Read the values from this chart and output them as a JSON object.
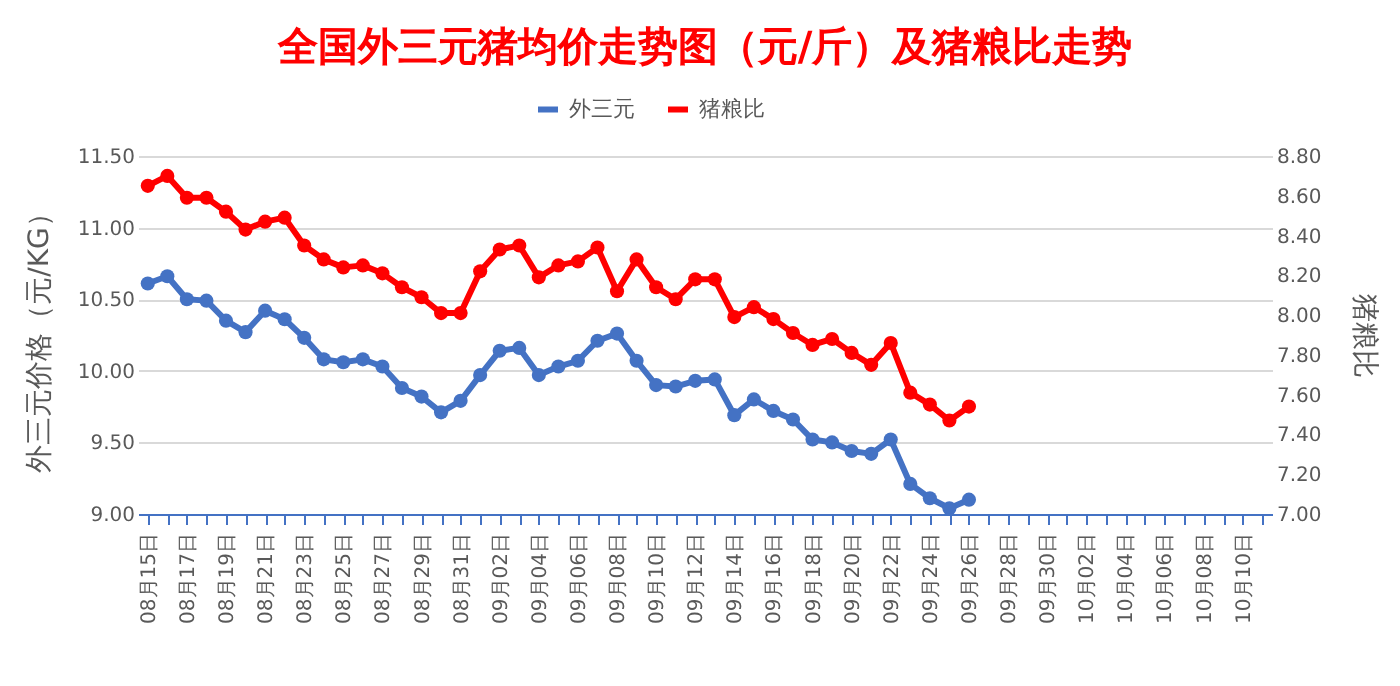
{
  "chart_data": {
    "type": "line",
    "title": "全国外三元猪均价走势图（元/斤）及猪粮比走势",
    "ylabel": "外三元价格（元/KG）",
    "y2label": "猪粮比",
    "categories": [
      "08月15日",
      null,
      "08月17日",
      null,
      "08月19日",
      null,
      "08月21日",
      null,
      "08月23日",
      null,
      "08月25日",
      null,
      "08月27日",
      null,
      "08月29日",
      null,
      "08月31日",
      null,
      "09月02日",
      null,
      "09月04日",
      null,
      "09月06日",
      null,
      "09月08日",
      null,
      "09月10日",
      null,
      "09月12日",
      null,
      "09月14日",
      null,
      "09月16日",
      null,
      "09月18日",
      null,
      "09月20日",
      null,
      "09月22日",
      null,
      "09月24日",
      null,
      "09月26日",
      null,
      "09月28日",
      null,
      "09月30日",
      null,
      "10月02日",
      null,
      "10月04日",
      null,
      "10月06日",
      null,
      "10月08日",
      null,
      "10月10日",
      null
    ],
    "series": [
      {
        "name": "外三元",
        "color": "#4472c4",
        "values": [
          10.61,
          10.66,
          10.5,
          10.49,
          10.35,
          10.27,
          10.42,
          10.36,
          10.23,
          10.08,
          10.06,
          10.08,
          10.03,
          9.88,
          9.82,
          9.71,
          9.79,
          9.97,
          10.14,
          10.16,
          9.97,
          10.03,
          10.07,
          10.21,
          10.26,
          10.07,
          9.9,
          9.89,
          9.93,
          9.94,
          9.69,
          9.8,
          9.72,
          9.66,
          9.52,
          9.5,
          9.44,
          9.42,
          9.52,
          9.21,
          9.11,
          9.04,
          9.1,
          null,
          null,
          null,
          null,
          null,
          null,
          null,
          null,
          null,
          null,
          null,
          null,
          null,
          null,
          null
        ]
      },
      {
        "name": "猪粮比",
        "color": "#ff0000",
        "axis": "y2",
        "values": [
          8.65,
          8.7,
          8.59,
          8.59,
          8.52,
          8.43,
          8.47,
          8.49,
          8.35,
          8.28,
          8.24,
          8.25,
          8.21,
          8.14,
          8.09,
          8.01,
          8.01,
          8.22,
          8.33,
          8.35,
          8.19,
          8.25,
          8.27,
          8.34,
          8.12,
          8.28,
          8.14,
          8.08,
          8.18,
          8.18,
          7.99,
          8.04,
          7.98,
          7.91,
          7.85,
          7.88,
          7.81,
          7.75,
          7.86,
          7.61,
          7.55,
          7.47,
          7.54,
          null,
          null,
          null,
          null,
          null,
          null,
          null,
          null,
          null,
          null,
          null,
          null,
          null,
          null,
          null
        ]
      }
    ],
    "ylim": [
      9,
      11.5
    ],
    "yticks": [
      {
        "value": 9,
        "label": "9.00"
      },
      {
        "value": 9.5,
        "label": "9.50"
      },
      {
        "value": 10,
        "label": "10.00"
      },
      {
        "value": 10.5,
        "label": "10.50"
      },
      {
        "value": 11,
        "label": "11.00"
      },
      {
        "value": 11.5,
        "label": "11.50"
      }
    ],
    "y2lim": [
      7,
      8.8
    ],
    "y2ticks": [
      {
        "value": 7,
        "label": "7.00"
      },
      {
        "value": 7.2,
        "label": "7.20"
      },
      {
        "value": 7.4,
        "label": "7.40"
      },
      {
        "value": 7.6,
        "label": "7.60"
      },
      {
        "value": 7.8,
        "label": "7.80"
      },
      {
        "value": 8,
        "label": "8.00"
      },
      {
        "value": 8.2,
        "label": "8.20"
      },
      {
        "value": 8.4,
        "label": "8.40"
      },
      {
        "value": 8.6,
        "label": "8.60"
      },
      {
        "value": 8.8,
        "label": "8.80"
      }
    ],
    "grid": "y",
    "legend": "top",
    "marker": "circle",
    "line_style": "solid"
  }
}
